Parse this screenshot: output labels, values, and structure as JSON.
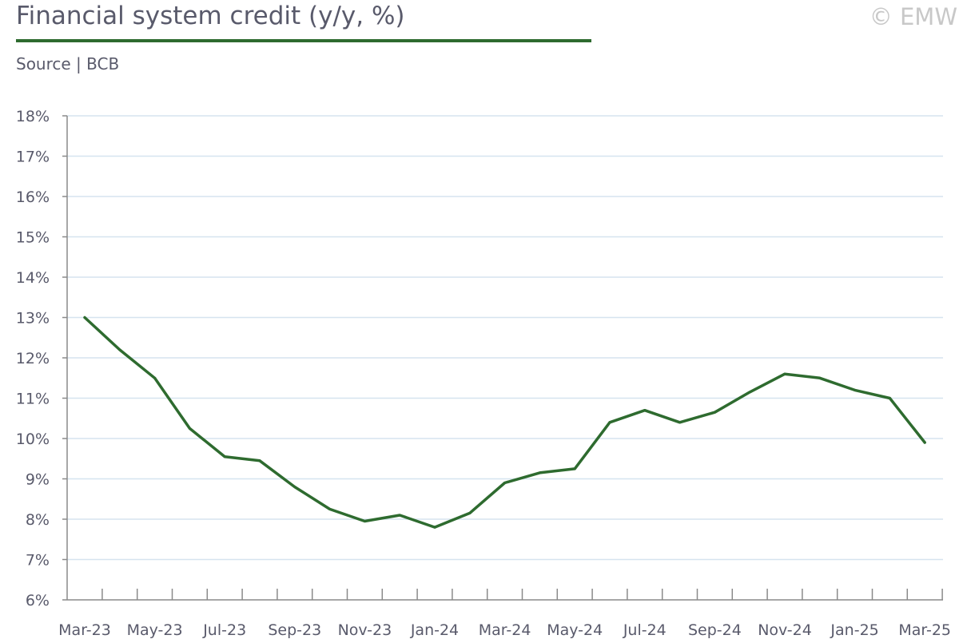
{
  "header": {
    "title": "Financial system credit (y/y, %)",
    "source": "Source | BCB",
    "copyright": "© EMW"
  },
  "colors": {
    "line": "#2e6b2f",
    "title_rule": "#2e6b2f",
    "gridline": "#d6e4ef",
    "axis": "#8a8a8a",
    "text": "#595a6b",
    "copyright": "#c8c8c8"
  },
  "chart_data": {
    "type": "line",
    "title": "Financial system credit (y/y, %)",
    "xlabel": "",
    "ylabel": "",
    "ylim": [
      6,
      18
    ],
    "y_ticks": [
      "6%",
      "7%",
      "8%",
      "9%",
      "10%",
      "11%",
      "12%",
      "13%",
      "14%",
      "15%",
      "16%",
      "17%",
      "18%"
    ],
    "x_tick_labels": [
      "Mar-23",
      "May-23",
      "Jul-23",
      "Sep-23",
      "Nov-23",
      "Jan-24",
      "Mar-24",
      "May-24",
      "Jul-24",
      "Sep-24",
      "Nov-24",
      "Jan-25",
      "Mar-25"
    ],
    "grid": true,
    "legend": "none",
    "x": [
      "Mar-23",
      "Apr-23",
      "May-23",
      "Jun-23",
      "Jul-23",
      "Aug-23",
      "Sep-23",
      "Oct-23",
      "Nov-23",
      "Dec-23",
      "Jan-24",
      "Feb-24",
      "Mar-24",
      "Apr-24",
      "May-24",
      "Jun-24",
      "Jul-24",
      "Aug-24",
      "Sep-24",
      "Oct-24",
      "Nov-24",
      "Dec-24",
      "Jan-25",
      "Feb-25",
      "Mar-25"
    ],
    "series": [
      {
        "values": [
          13.0,
          12.2,
          11.5,
          10.25,
          9.55,
          9.45,
          8.8,
          8.25,
          7.95,
          8.1,
          7.8,
          8.15,
          8.9,
          9.15,
          9.25,
          10.4,
          10.7,
          10.4,
          10.65,
          11.15,
          11.6,
          11.5,
          11.2,
          11.0,
          9.9
        ]
      }
    ]
  }
}
